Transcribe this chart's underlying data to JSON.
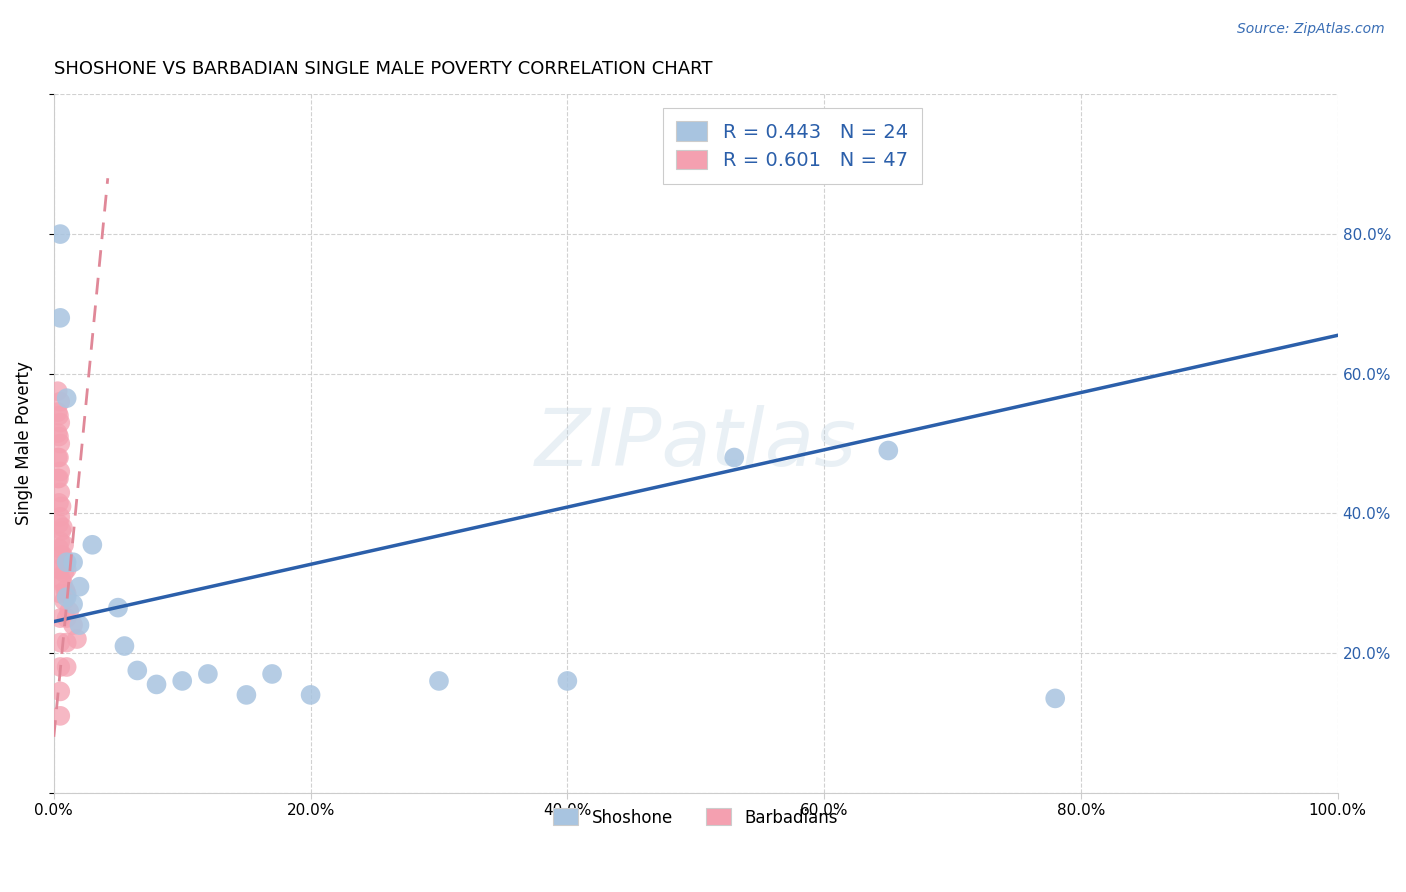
{
  "title": "SHOSHONE VS BARBADIAN SINGLE MALE POVERTY CORRELATION CHART",
  "source_text": "Source: ZipAtlas.com",
  "ylabel": "Single Male Poverty",
  "watermark": "ZIPatlas",
  "xlim": [
    0.0,
    1.0
  ],
  "ylim": [
    0.0,
    1.0
  ],
  "shoshone_color": "#a8c4e0",
  "barbadian_color": "#f4a0b0",
  "shoshone_line_color": "#2b5faa",
  "barbadian_line_color": "#e08898",
  "shoshone_R": 0.443,
  "shoshone_N": 24,
  "barbadian_R": 0.601,
  "barbadian_N": 47,
  "shoshone_x": [
    0.005,
    0.005,
    0.01,
    0.01,
    0.01,
    0.015,
    0.015,
    0.02,
    0.02,
    0.03,
    0.05,
    0.055,
    0.065,
    0.08,
    0.1,
    0.12,
    0.15,
    0.17,
    0.2,
    0.3,
    0.4,
    0.53,
    0.65,
    0.78
  ],
  "shoshone_y": [
    0.8,
    0.68,
    0.565,
    0.33,
    0.28,
    0.33,
    0.27,
    0.295,
    0.24,
    0.355,
    0.265,
    0.21,
    0.175,
    0.155,
    0.16,
    0.17,
    0.14,
    0.17,
    0.14,
    0.16,
    0.16,
    0.48,
    0.49,
    0.135
  ],
  "barbadian_x": [
    0.003,
    0.003,
    0.003,
    0.003,
    0.003,
    0.004,
    0.004,
    0.004,
    0.004,
    0.004,
    0.004,
    0.004,
    0.004,
    0.005,
    0.005,
    0.005,
    0.005,
    0.005,
    0.005,
    0.005,
    0.005,
    0.005,
    0.005,
    0.005,
    0.005,
    0.005,
    0.005,
    0.006,
    0.006,
    0.006,
    0.006,
    0.007,
    0.007,
    0.007,
    0.008,
    0.008,
    0.008,
    0.009,
    0.009,
    0.01,
    0.01,
    0.01,
    0.01,
    0.01,
    0.012,
    0.015,
    0.018
  ],
  "barbadian_y": [
    0.575,
    0.545,
    0.515,
    0.48,
    0.45,
    0.54,
    0.51,
    0.48,
    0.45,
    0.415,
    0.385,
    0.35,
    0.32,
    0.56,
    0.53,
    0.5,
    0.46,
    0.43,
    0.395,
    0.36,
    0.32,
    0.285,
    0.25,
    0.215,
    0.18,
    0.145,
    0.11,
    0.41,
    0.375,
    0.34,
    0.305,
    0.38,
    0.34,
    0.3,
    0.355,
    0.315,
    0.275,
    0.33,
    0.29,
    0.32,
    0.285,
    0.25,
    0.215,
    0.18,
    0.26,
    0.24,
    0.22
  ],
  "background_color": "#ffffff",
  "grid_color": "#cccccc",
  "title_fontsize": 13,
  "legend_fontsize": 14,
  "axis_fontsize": 11
}
